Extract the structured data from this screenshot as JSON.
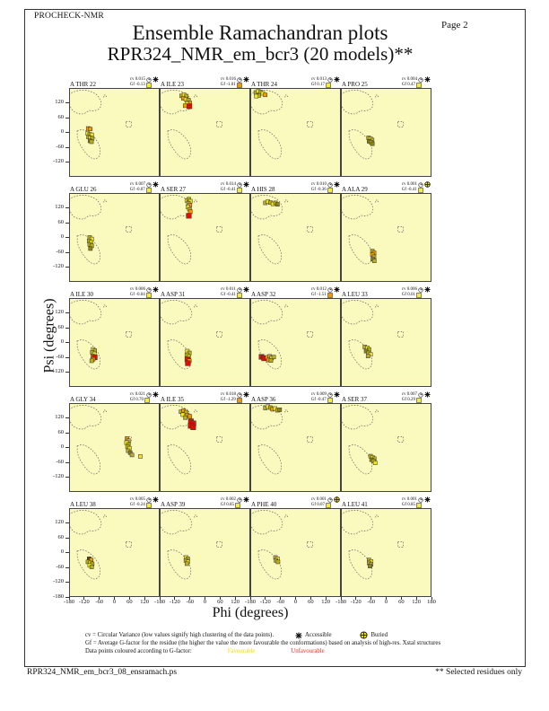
{
  "page": {
    "header_left": "PROCHECK-NMR",
    "page_label": "Page 2",
    "title": "Ensemble Ramachandran plots",
    "subtitle": "RPR324_NMR_em_bcr3 (20 models)**",
    "footer_left": "RPR324_NMR_em_bcr3_08_ensramach.ps",
    "footer_right": "** Selected residues only"
  },
  "axes": {
    "xlabel": "Phi (degrees)",
    "ylabel": "Psi (degrees)",
    "xlim": [
      -180,
      180
    ],
    "ylim": [
      -180,
      180
    ],
    "xticks": [
      -180,
      -120,
      -60,
      0,
      60,
      120
    ],
    "xtick_last": 180,
    "yticks": [
      120,
      60,
      0,
      -60,
      -120
    ],
    "ytick_bottom": -180
  },
  "legend": {
    "line1": "cv = Circular Variance (low values signify high clustering of the data points).",
    "accessible_label": "Accessible",
    "buried_label": "Buried",
    "line2": "Gf = Average G-factor for the residue (the higher the value the more favourable the conformations)  based on analysis of high-res. Xstal structures",
    "line3": "Data points coloured according to G-factor:",
    "favourable_label": "Favourable",
    "unfavourable_label": "Unfavourable"
  },
  "colors": {
    "plot_bg": "#FAF9BE",
    "region_stroke": "#666666",
    "point_outline": "#333333",
    "point_palette": {
      "y": "#F2E419",
      "o": "#B8AE1E",
      "d": "#8C850F",
      "n": "#F59800",
      "r": "#E01000",
      "b": "#5F4A05"
    },
    "gf_favourable": "#F6EC3A",
    "gf_unfavourable": "#F59800",
    "buried_fill": "#F6E800"
  },
  "chart_data": {
    "type": "scatter",
    "subplot_grid": [
      5,
      4
    ],
    "xlabel": "Phi (degrees)",
    "ylabel": "Psi (degrees)",
    "xlim": [
      -180,
      180
    ],
    "ylim": [
      -180,
      180
    ],
    "regions": {
      "beta": [
        [
          -180,
          152
        ],
        [
          -168,
          162
        ],
        [
          -152,
          168
        ],
        [
          -134,
          171
        ],
        [
          -116,
          171
        ],
        [
          -100,
          168
        ],
        [
          -86,
          162
        ],
        [
          -72,
          154
        ],
        [
          -62,
          143
        ],
        [
          -55,
          130
        ],
        [
          -52,
          116
        ],
        [
          -55,
          103
        ],
        [
          -63,
          94
        ],
        [
          -75,
          89
        ],
        [
          -88,
          87
        ],
        [
          -99,
          89
        ],
        [
          -108,
          84
        ],
        [
          -118,
          77
        ],
        [
          -132,
          74
        ],
        [
          -147,
          77
        ],
        [
          -160,
          84
        ],
        [
          -170,
          94
        ],
        [
          -176,
          106
        ],
        [
          -180,
          118
        ]
      ],
      "alpha": [
        [
          -148,
          6
        ],
        [
          -133,
          11
        ],
        [
          -118,
          9
        ],
        [
          -104,
          2
        ],
        [
          -90,
          -9
        ],
        [
          -76,
          -24
        ],
        [
          -64,
          -43
        ],
        [
          -57,
          -63
        ],
        [
          -56,
          -83
        ],
        [
          -62,
          -99
        ],
        [
          -74,
          -108
        ],
        [
          -88,
          -106
        ],
        [
          -102,
          -96
        ],
        [
          -116,
          -81
        ],
        [
          -129,
          -62
        ],
        [
          -140,
          -42
        ],
        [
          -147,
          -22
        ]
      ],
      "l_alpha_square": [
        [
          46,
          44
        ],
        [
          68,
          44
        ],
        [
          68,
          22
        ],
        [
          46,
          22
        ]
      ],
      "specks": [
        [
          -40,
          153
        ],
        [
          -34,
          148
        ],
        [
          -44,
          146
        ]
      ]
    },
    "plots": [
      {
        "residue": "A THR 22",
        "cv": "0.015",
        "gf": "-0.13",
        "marker": "accessible",
        "gf_class": "favourable",
        "points": [
          [
            -104,
            16,
            "n"
          ],
          [
            -96,
            14,
            "n"
          ],
          [
            -106,
            -4,
            "y"
          ],
          [
            -98,
            -8,
            "o"
          ],
          [
            -90,
            -10,
            "y"
          ],
          [
            -103,
            -18,
            "o"
          ],
          [
            -95,
            -22,
            "y"
          ],
          [
            -88,
            -24,
            "o"
          ],
          [
            -97,
            -34,
            "d"
          ],
          [
            -91,
            -38,
            "o"
          ]
        ]
      },
      {
        "residue": "A ILE 23",
        "cv": "0.016",
        "gf": "-1.01",
        "marker": "accessible",
        "gf_class": "unfavourable",
        "points": [
          [
            -93,
            148,
            "o"
          ],
          [
            -83,
            152,
            "y"
          ],
          [
            -74,
            147,
            "o"
          ],
          [
            -86,
            138,
            "n"
          ],
          [
            -76,
            134,
            "y"
          ],
          [
            -66,
            131,
            "o"
          ],
          [
            -61,
            120,
            "n"
          ],
          [
            -72,
            117,
            "y"
          ],
          [
            -79,
            108,
            "n"
          ],
          [
            -62,
            106,
            "r"
          ]
        ]
      },
      {
        "residue": "A THR 24",
        "cv": "0.013",
        "gf": "0.17",
        "marker": "accessible",
        "gf_class": "favourable",
        "points": [
          [
            -158,
            162,
            "o"
          ],
          [
            -148,
            167,
            "y"
          ],
          [
            -139,
            163,
            "o"
          ],
          [
            -130,
            158,
            "y"
          ],
          [
            -121,
            152,
            "n"
          ],
          [
            -146,
            150,
            "o"
          ],
          [
            -156,
            147,
            "y"
          ]
        ]
      },
      {
        "residue": "A PRO 25",
        "cv": "0.004",
        "gf": "0.47",
        "marker": "accessible",
        "gf_class": "favourable",
        "points": [
          [
            -70,
            -22,
            "o"
          ],
          [
            -62,
            -26,
            "y"
          ],
          [
            -56,
            -31,
            "o"
          ],
          [
            -68,
            -36,
            "d"
          ],
          [
            -60,
            -40,
            "o"
          ],
          [
            -55,
            -46,
            "d"
          ]
        ]
      },
      {
        "residue": "A GLU 26",
        "cv": "0.007",
        "gf": "-0.07",
        "marker": "accessible",
        "gf_class": "favourable",
        "points": [
          [
            -98,
            0,
            "o"
          ],
          [
            -90,
            -6,
            "y"
          ],
          [
            -100,
            -14,
            "o"
          ],
          [
            -92,
            -20,
            "y"
          ],
          [
            -98,
            -28,
            "o"
          ],
          [
            -90,
            -34,
            "o"
          ],
          [
            -95,
            -45,
            "d"
          ]
        ]
      },
      {
        "residue": "A SER 27",
        "cv": "0.014",
        "gf": "-0.41",
        "marker": "accessible",
        "gf_class": "favourable",
        "points": [
          [
            -72,
            150,
            "y"
          ],
          [
            -64,
            155,
            "o"
          ],
          [
            -58,
            147,
            "y"
          ],
          [
            -66,
            139,
            "o"
          ],
          [
            -60,
            131,
            "n"
          ],
          [
            -68,
            124,
            "y"
          ],
          [
            -62,
            114,
            "o"
          ],
          [
            -58,
            104,
            "n"
          ],
          [
            -64,
            88,
            "r"
          ]
        ]
      },
      {
        "residue": "A HIS 28",
        "cv": "0.010",
        "gf": "-0.36",
        "marker": "accessible",
        "gf_class": "favourable",
        "points": [
          [
            -120,
            140,
            "o"
          ],
          [
            -110,
            145,
            "y"
          ],
          [
            -100,
            141,
            "o"
          ],
          [
            -90,
            136,
            "y"
          ],
          [
            -80,
            140,
            "o"
          ],
          [
            -72,
            134,
            "d"
          ]
        ]
      },
      {
        "residue": "A ALA 29",
        "cv": "0.001",
        "gf": "-0.41",
        "marker": "buried",
        "gf_class": "favourable",
        "points": [
          [
            -55,
            -55,
            "o"
          ],
          [
            -48,
            -62,
            "n"
          ],
          [
            -55,
            -70,
            "n"
          ],
          [
            -48,
            -78,
            "o"
          ],
          [
            -53,
            -88,
            "d"
          ],
          [
            -47,
            -95,
            "o"
          ]
        ]
      },
      {
        "residue": "A ILE 30",
        "cv": "0.006",
        "gf": "-0.04",
        "marker": "accessible",
        "gf_class": "favourable",
        "points": [
          [
            -85,
            -28,
            "y"
          ],
          [
            -78,
            -33,
            "o"
          ],
          [
            -88,
            -40,
            "o"
          ],
          [
            -80,
            -46,
            "y"
          ],
          [
            -86,
            -55,
            "n"
          ],
          [
            -78,
            -60,
            "r"
          ],
          [
            -84,
            -68,
            "n"
          ],
          [
            -90,
            -74,
            "o"
          ]
        ]
      },
      {
        "residue": "A ASP 31",
        "cv": "0.011",
        "gf": "-0.41",
        "marker": "accessible",
        "gf_class": "favourable",
        "points": [
          [
            -70,
            -35,
            "y"
          ],
          [
            -62,
            -42,
            "o"
          ],
          [
            -72,
            -50,
            "o"
          ],
          [
            -64,
            -58,
            "y"
          ],
          [
            -70,
            -68,
            "r"
          ],
          [
            -62,
            -74,
            "n"
          ],
          [
            -68,
            -84,
            "r"
          ]
        ]
      },
      {
        "residue": "A ASP 32",
        "cv": "0.012",
        "gf": "-1.51",
        "marker": "accessible",
        "gf_class": "unfavourable",
        "points": [
          [
            -135,
            -58,
            "r"
          ],
          [
            -125,
            -64,
            "r"
          ],
          [
            -113,
            -60,
            "n"
          ],
          [
            -103,
            -56,
            "o"
          ],
          [
            -95,
            -63,
            "y"
          ],
          [
            -87,
            -59,
            "o"
          ],
          [
            -108,
            -71,
            "n"
          ],
          [
            -98,
            -73,
            "o"
          ]
        ]
      },
      {
        "residue": "A LEU 33",
        "cv": "0.006",
        "gf": "0.01",
        "marker": "accessible",
        "gf_class": "favourable",
        "points": [
          [
            -85,
            -18,
            "o"
          ],
          [
            -75,
            -22,
            "y"
          ],
          [
            -68,
            -28,
            "o"
          ],
          [
            -80,
            -35,
            "d"
          ],
          [
            -70,
            -42,
            "o"
          ],
          [
            -62,
            -48,
            "y"
          ],
          [
            -72,
            -55,
            "o"
          ]
        ]
      },
      {
        "residue": "A GLY 34",
        "cv": "0.021",
        "gf": "0.70",
        "marker": "accessible",
        "gf_class": "favourable",
        "points": [
          [
            50,
            36,
            "n"
          ],
          [
            56,
            28,
            "o"
          ],
          [
            48,
            20,
            "y"
          ],
          [
            56,
            12,
            "o"
          ],
          [
            52,
            4,
            "o"
          ],
          [
            60,
            -3,
            "y"
          ],
          [
            55,
            -13,
            "o"
          ],
          [
            63,
            -21,
            "d"
          ],
          [
            70,
            -30,
            "o"
          ],
          [
            103,
            -36,
            "y"
          ]
        ]
      },
      {
        "residue": "A ILE 35",
        "cv": "0.018",
        "gf": "-1.29",
        "marker": "accessible",
        "gf_class": "unfavourable",
        "points": [
          [
            -95,
            145,
            "o"
          ],
          [
            -85,
            150,
            "n"
          ],
          [
            -75,
            143,
            "o"
          ],
          [
            -88,
            133,
            "y"
          ],
          [
            -70,
            131,
            "n"
          ],
          [
            -78,
            121,
            "o"
          ],
          [
            -60,
            126,
            "n"
          ],
          [
            -56,
            106,
            "r"
          ],
          [
            -46,
            98,
            "r"
          ],
          [
            -57,
            88,
            "r"
          ],
          [
            -47,
            82,
            "r"
          ]
        ]
      },
      {
        "residue": "A ASP 36",
        "cv": "0.009",
        "gf": "-0.47",
        "marker": "accessible",
        "gf_class": "favourable",
        "points": [
          [
            -120,
            160,
            "o"
          ],
          [
            -110,
            166,
            "y"
          ],
          [
            -100,
            162,
            "o"
          ],
          [
            -92,
            155,
            "n"
          ],
          [
            -82,
            158,
            "y"
          ],
          [
            -72,
            151,
            "o"
          ],
          [
            -63,
            153,
            "d"
          ]
        ]
      },
      {
        "residue": "A SER 37",
        "cv": "0.007",
        "gf": "0.29",
        "marker": "accessible",
        "gf_class": "favourable",
        "points": [
          [
            -62,
            -35,
            "o"
          ],
          [
            -54,
            -40,
            "y"
          ],
          [
            -47,
            -45,
            "o"
          ],
          [
            -58,
            -50,
            "d"
          ],
          [
            -50,
            -55,
            "o"
          ],
          [
            -44,
            -62,
            "y"
          ]
        ]
      },
      {
        "residue": "A LEU 38",
        "cv": "0.005",
        "gf": "-0.24",
        "marker": "accessible",
        "gf_class": "favourable",
        "points": [
          [
            -100,
            -25,
            "b"
          ],
          [
            -92,
            -30,
            "n"
          ],
          [
            -105,
            -38,
            "o"
          ],
          [
            -95,
            -42,
            "y"
          ],
          [
            -88,
            -46,
            "o"
          ],
          [
            -98,
            -52,
            "y"
          ],
          [
            -90,
            -58,
            "o"
          ]
        ]
      },
      {
        "residue": "A ASP 39",
        "cv": "0.002",
        "gf": "0.85",
        "marker": "accessible",
        "gf_class": "favourable",
        "points": [
          [
            -75,
            -20,
            "y"
          ],
          [
            -68,
            -26,
            "o"
          ],
          [
            -76,
            -32,
            "o"
          ],
          [
            -68,
            -38,
            "y"
          ],
          [
            -72,
            -45,
            "o"
          ]
        ]
      },
      {
        "residue": "A PHE 40",
        "cv": "0.001",
        "gf": "0.07",
        "marker": "buried",
        "gf_class": "favourable",
        "points": [
          [
            -80,
            -20,
            "o"
          ],
          [
            -72,
            -25,
            "y"
          ],
          [
            -78,
            -32,
            "o"
          ],
          [
            -70,
            -38,
            "o"
          ]
        ]
      },
      {
        "residue": "A LEU 41",
        "cv": "0.001",
        "gf": "0.85",
        "marker": "accessible",
        "gf_class": "favourable",
        "points": [
          [
            -68,
            -30,
            "o"
          ],
          [
            -60,
            -36,
            "y"
          ],
          [
            -68,
            -42,
            "o"
          ],
          [
            -60,
            -48,
            "o"
          ],
          [
            -64,
            -55,
            "d"
          ]
        ]
      }
    ]
  }
}
